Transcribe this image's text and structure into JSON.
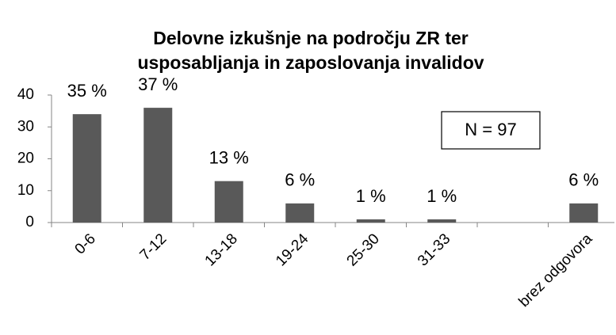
{
  "chart_data": {
    "type": "bar",
    "title": [
      "Delovne izkušnje na področju ZR ter",
      "usposabljanja in zaposlovanja invalidov"
    ],
    "annotation": "N = 97",
    "categories": [
      "0-6",
      "7-12",
      "13-18",
      "19-24",
      "25-30",
      "31-33",
      null,
      "brez odgovora"
    ],
    "values": [
      34,
      36,
      13,
      6,
      1,
      1,
      null,
      6
    ],
    "percent_labels": [
      "35 %",
      "37 %",
      "13 %",
      "6 %",
      "1 %",
      "1 %",
      null,
      "6 %"
    ],
    "color": "#595959",
    "ylim": [
      0,
      40
    ],
    "yticks": [
      0,
      10,
      20,
      30,
      40
    ],
    "grid": false
  }
}
